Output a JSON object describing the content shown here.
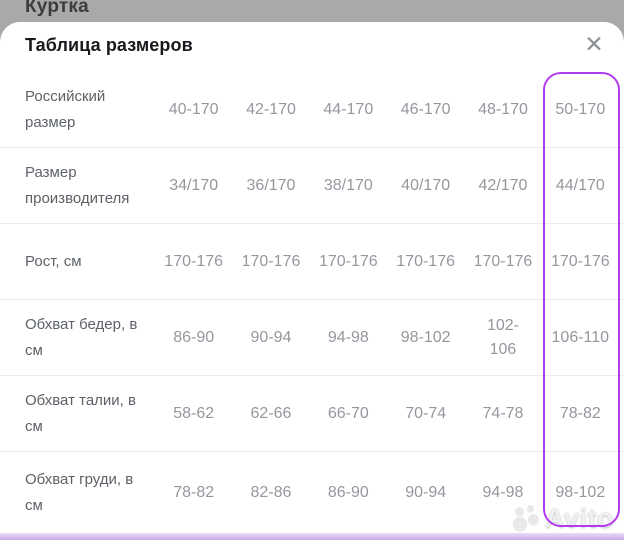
{
  "page": {
    "background_title": "Куртка"
  },
  "modal": {
    "title": "Таблица размеров",
    "close_icon": "✕"
  },
  "table": {
    "highlighted_column_index": 5,
    "rows": [
      {
        "label": "Российский размер",
        "values": [
          "40-170",
          "42-170",
          "44-170",
          "46-170",
          "48-170",
          "50-170"
        ]
      },
      {
        "label": "Размер производителя",
        "values": [
          "34/170",
          "36/170",
          "38/170",
          "40/170",
          "42/170",
          "44/170"
        ]
      },
      {
        "label": "Рост, см",
        "values": [
          "170-176",
          "170-176",
          "170-176",
          "170-176",
          "170-176",
          "170-176"
        ]
      },
      {
        "label": "Обхват бедер, в см",
        "values": [
          "86-90",
          "90-94",
          "94-98",
          "98-102",
          "102-\n106",
          "106-110"
        ]
      },
      {
        "label": "Обхват талии, в см",
        "values": [
          "58-62",
          "62-66",
          "66-70",
          "70-74",
          "74-78",
          "78-82"
        ]
      },
      {
        "label": "Обхват груди, в см",
        "values": [
          "78-82",
          "82-86",
          "86-90",
          "90-94",
          "94-98",
          "98-102"
        ]
      }
    ]
  },
  "colors": {
    "highlight_outline": "#b23bf0",
    "bottom_strip": "#c9abe9",
    "overlay": "#a9a9ab"
  },
  "watermark": {
    "text": "Avito"
  }
}
